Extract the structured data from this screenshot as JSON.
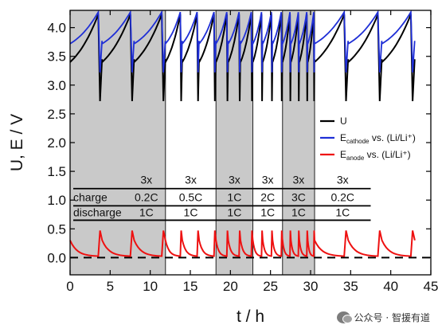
{
  "chart_data": {
    "type": "line",
    "xlabel": "t / h",
    "ylabel": "U, E / V",
    "xlim": [
      0,
      45
    ],
    "ylim": [
      -0.3,
      4.3
    ],
    "x_ticks": [
      0,
      5,
      10,
      15,
      20,
      25,
      30,
      35,
      40,
      45
    ],
    "y_ticks": [
      0.0,
      0.5,
      1.0,
      1.5,
      2.0,
      2.5,
      3.0,
      3.5,
      4.0
    ],
    "shaded_regions": [
      [
        0,
        11.9
      ],
      [
        18.2,
        22.8
      ],
      [
        26.5,
        30.5
      ]
    ],
    "segments": [
      {
        "start": 0.0,
        "end": 11.9,
        "period": 4.0,
        "repeat": "3x",
        "charge": "0.2C",
        "discharge": "1C"
      },
      {
        "start": 11.9,
        "end": 18.2,
        "period": 2.1,
        "repeat": "3x",
        "charge": "0.5C",
        "discharge": "1C"
      },
      {
        "start": 18.2,
        "end": 22.8,
        "period": 1.53,
        "repeat": "3x",
        "charge": "1C",
        "discharge": "1C"
      },
      {
        "start": 22.8,
        "end": 26.5,
        "period": 1.23,
        "repeat": "3x",
        "charge": "2C",
        "discharge": "1C"
      },
      {
        "start": 26.5,
        "end": 30.5,
        "period": 1.05,
        "repeat": "3x",
        "charge": "3C",
        "discharge": "1C"
      },
      {
        "start": 30.5,
        "end": 43.0,
        "period": 4.2,
        "repeat": "3x",
        "charge": "0.2C",
        "discharge": "1C"
      }
    ],
    "table_row_labels": {
      "charge": "charge",
      "discharge": "discharge"
    },
    "series": [
      {
        "key": "U",
        "color": "#000000",
        "legend_main": "U",
        "legend_sub": "",
        "legend_suffix": "",
        "charge_start": 3.4,
        "charge_end": 4.23,
        "discharge_min": 2.72
      },
      {
        "key": "cathode",
        "color": "#1f2fd6",
        "legend_main": "E",
        "legend_sub": "cathode",
        "legend_suffix": " vs. (Li/Li⁺)",
        "charge_start": 3.72,
        "charge_end": 4.27,
        "discharge_min": 3.22
      },
      {
        "key": "anode",
        "color": "#ee1111",
        "legend_main": "E",
        "legend_sub": "anode",
        "legend_suffix": " vs. (Li/Li⁺)",
        "charge_start": 0.3,
        "charge_end": 0.02,
        "discharge_max": 0.47
      }
    ],
    "zero_reference_line": 0.0
  },
  "watermark": {
    "icon": "wechat-icon",
    "text": "公众号 · 智援有道"
  }
}
